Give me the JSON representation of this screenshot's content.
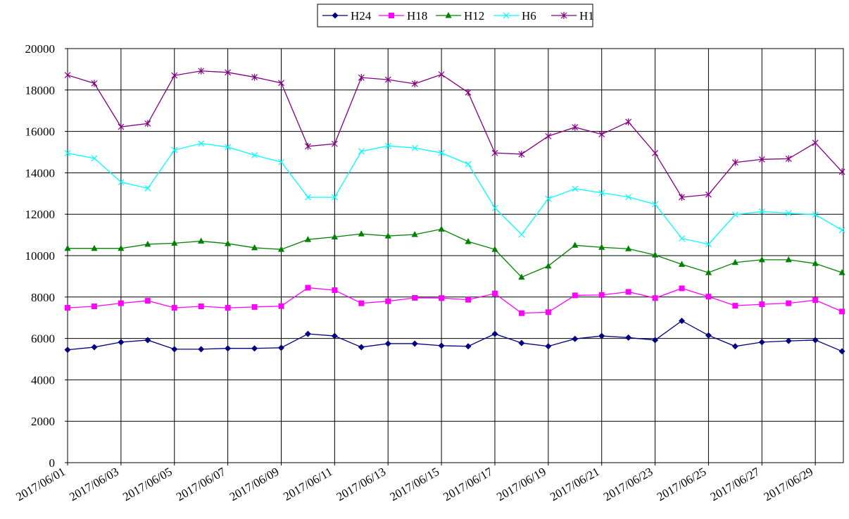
{
  "chart_data": {
    "type": "line",
    "title": "",
    "xlabel": "",
    "ylabel": "",
    "ylim": [
      0,
      20000
    ],
    "yticks": [
      0,
      2000,
      4000,
      6000,
      8000,
      10000,
      12000,
      14000,
      16000,
      18000,
      20000
    ],
    "x": [
      "2017/06/01",
      "2017/06/02",
      "2017/06/03",
      "2017/06/04",
      "2017/06/05",
      "2017/06/06",
      "2017/06/07",
      "2017/06/08",
      "2017/06/09",
      "2017/06/10",
      "2017/06/11",
      "2017/06/12",
      "2017/06/13",
      "2017/06/14",
      "2017/06/15",
      "2017/06/16",
      "2017/06/17",
      "2017/06/18",
      "2017/06/19",
      "2017/06/20",
      "2017/06/21",
      "2017/06/22",
      "2017/06/23",
      "2017/06/24",
      "2017/06/25",
      "2017/06/26",
      "2017/06/27",
      "2017/06/28",
      "2017/06/29",
      "2017/06/30"
    ],
    "xtick_labels": [
      "2017/06/01",
      "2017/06/03",
      "2017/06/05",
      "2017/06/07",
      "2017/06/09",
      "2017/06/11",
      "2017/06/13",
      "2017/06/15",
      "2017/06/17",
      "2017/06/19",
      "2017/06/21",
      "2017/06/23",
      "2017/06/25",
      "2017/06/27",
      "2017/06/29"
    ],
    "grid": true,
    "legend_position": "top-center",
    "series": [
      {
        "name": "H24",
        "color": "#000080",
        "marker": "diamond",
        "values": [
          5450,
          5580,
          5820,
          5920,
          5480,
          5480,
          5520,
          5520,
          5550,
          6220,
          6120,
          5580,
          5750,
          5750,
          5650,
          5620,
          6220,
          5780,
          5620,
          5980,
          6120,
          6040,
          5920,
          6850,
          6150,
          5620,
          5820,
          5880,
          5920,
          5380
        ]
      },
      {
        "name": "H18",
        "color": "#ff00ff",
        "marker": "square",
        "values": [
          7480,
          7550,
          7700,
          7820,
          7480,
          7550,
          7480,
          7520,
          7560,
          8450,
          8330,
          7700,
          7800,
          7960,
          7950,
          7870,
          8170,
          7220,
          7270,
          8080,
          8100,
          8250,
          7950,
          8420,
          8020,
          7580,
          7650,
          7700,
          7850,
          7300
        ]
      },
      {
        "name": "H12",
        "color": "#008000",
        "marker": "triangle",
        "values": [
          10350,
          10350,
          10350,
          10550,
          10600,
          10700,
          10580,
          10380,
          10300,
          10780,
          10900,
          11050,
          10950,
          11020,
          11280,
          10680,
          10300,
          8960,
          9500,
          10500,
          10400,
          10330,
          10030,
          9580,
          9180,
          9670,
          9800,
          9800,
          9620,
          9180
        ]
      },
      {
        "name": "H6",
        "color": "#00ffff",
        "marker": "x",
        "values": [
          14950,
          14700,
          13550,
          13250,
          15100,
          15420,
          15240,
          14850,
          14520,
          12820,
          12820,
          15040,
          15300,
          15200,
          14960,
          14420,
          12300,
          11020,
          12750,
          13230,
          13030,
          12830,
          12480,
          10830,
          10550,
          11980,
          12130,
          12050,
          11980,
          11230
        ]
      },
      {
        "name": "H1",
        "color": "#800080",
        "marker": "star",
        "values": [
          18720,
          18320,
          16220,
          16380,
          18700,
          18920,
          18850,
          18620,
          18340,
          15280,
          15400,
          18600,
          18500,
          18300,
          18750,
          17880,
          14960,
          14900,
          15770,
          16200,
          15860,
          16460,
          14950,
          12820,
          12950,
          14500,
          14650,
          14680,
          15450,
          14050
        ]
      }
    ]
  }
}
